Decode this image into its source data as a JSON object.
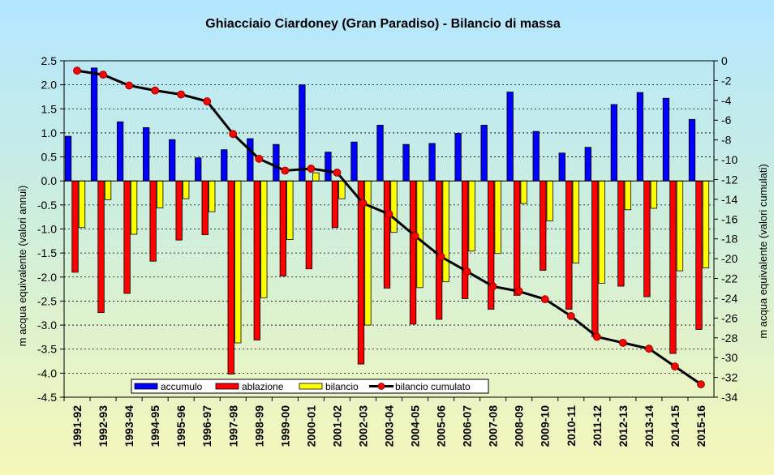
{
  "chart_data": {
    "type": "bar",
    "title": "Ghiacciaio Ciardoney (Gran Paradiso) - Bilancio di massa",
    "ylabel_left": "m acqua equivalente (valori annui)",
    "ylabel_right": "m acqua equivalente (valori cumulati)",
    "ylim_left": [
      -4.5,
      2.5
    ],
    "ylim_right": [
      -34,
      0
    ],
    "yticks_left": [
      "2.5",
      "2.0",
      "1.5",
      "1.0",
      "0.5",
      "0.0",
      "-0.5",
      "-1.0",
      "-1.5",
      "-2.0",
      "-2.5",
      "-3.0",
      "-3.5",
      "-4.0",
      "-4.5"
    ],
    "yticks_right": [
      "0",
      "-2",
      "-4",
      "-6",
      "-8",
      "-10",
      "-12",
      "-14",
      "-16",
      "-18",
      "-20",
      "-22",
      "-24",
      "-26",
      "-28",
      "-30",
      "-32",
      "-34"
    ],
    "grid": true,
    "legend_position": "bottom-left",
    "categories": [
      "1991-92",
      "1992-93",
      "1993-94",
      "1994-95",
      "1995-96",
      "1996-97",
      "1997-98",
      "1998-99",
      "1999-00",
      "2000-01",
      "2001-02",
      "2002-03",
      "2003-04",
      "2004-05",
      "2005-06",
      "2006-07",
      "2007-08",
      "2008-09",
      "2009-10",
      "2010-11",
      "2011-12",
      "2012-13",
      "2013-14",
      "2014-15",
      "2015-16"
    ],
    "series": [
      {
        "name": "accumulo",
        "type": "bar",
        "axis": "left",
        "color": "#0000ff",
        "values": [
          0.93,
          2.35,
          1.23,
          1.11,
          0.86,
          0.48,
          0.65,
          0.88,
          0.76,
          2.0,
          0.6,
          0.81,
          1.16,
          0.76,
          0.78,
          0.99,
          1.16,
          1.85,
          1.03,
          0.58,
          0.7,
          1.59,
          1.84,
          1.72,
          1.28
        ]
      },
      {
        "name": "ablazione",
        "type": "bar",
        "axis": "left",
        "color": "#ff0000",
        "values": [
          -1.9,
          -2.74,
          -2.34,
          -1.67,
          -1.23,
          -1.12,
          -4.02,
          -3.31,
          -1.98,
          -1.83,
          -0.97,
          -3.81,
          -2.23,
          -2.98,
          -2.88,
          -2.45,
          -2.67,
          -2.38,
          -1.86,
          -2.67,
          -3.24,
          -2.19,
          -2.41,
          -3.59,
          -3.09
        ]
      },
      {
        "name": "bilancio",
        "type": "bar",
        "axis": "left",
        "color": "#ffff00",
        "values": [
          -0.97,
          -0.39,
          -1.11,
          -0.56,
          -0.37,
          -0.64,
          -3.37,
          -2.43,
          -1.22,
          0.17,
          -0.37,
          -3.0,
          -1.07,
          -2.22,
          -2.1,
          -1.46,
          -1.51,
          -0.47,
          -0.83,
          -1.71,
          -2.13,
          -0.6,
          -0.57,
          -1.87,
          -1.81
        ]
      },
      {
        "name": "bilancio cumulato",
        "type": "line",
        "axis": "right",
        "color": "#000000",
        "marker_color": "#ff0000",
        "values": [
          -1.0,
          -1.4,
          -2.5,
          -3.0,
          -3.4,
          -4.1,
          -7.4,
          -9.9,
          -11.1,
          -10.9,
          -11.3,
          -14.4,
          -15.5,
          -17.7,
          -19.8,
          -21.3,
          -22.8,
          -23.3,
          -24.1,
          -25.8,
          -27.9,
          -28.5,
          -29.1,
          -30.9,
          -32.7
        ]
      }
    ]
  }
}
